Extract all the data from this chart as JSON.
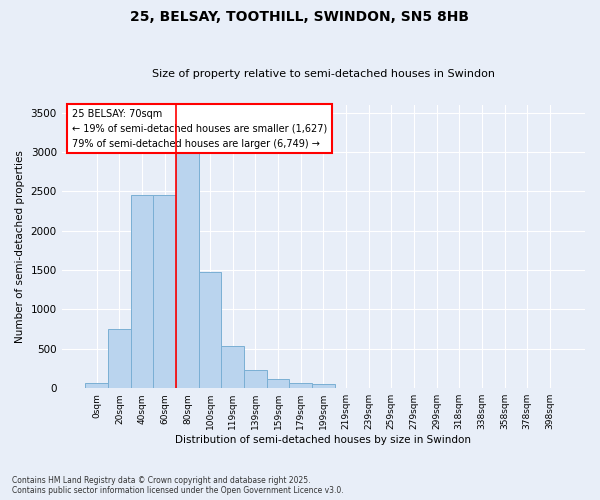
{
  "title": "25, BELSAY, TOOTHILL, SWINDON, SN5 8HB",
  "subtitle": "Size of property relative to semi-detached houses in Swindon",
  "xlabel": "Distribution of semi-detached houses by size in Swindon",
  "ylabel": "Number of semi-detached properties",
  "bar_color": "#bad4ee",
  "bar_edge_color": "#7aafd4",
  "background_color": "#e8eef8",
  "fig_color": "#e8eef8",
  "categories": [
    "0sqm",
    "20sqm",
    "40sqm",
    "60sqm",
    "80sqm",
    "100sqm",
    "119sqm",
    "139sqm",
    "159sqm",
    "179sqm",
    "199sqm",
    "219sqm",
    "239sqm",
    "259sqm",
    "279sqm",
    "299sqm",
    "318sqm",
    "338sqm",
    "358sqm",
    "378sqm",
    "398sqm"
  ],
  "values": [
    60,
    750,
    2450,
    2450,
    3000,
    1480,
    530,
    230,
    120,
    60,
    50,
    0,
    0,
    0,
    0,
    0,
    0,
    0,
    0,
    0,
    0
  ],
  "property_label": "25 BELSAY: 70sqm",
  "pct_smaller": 19,
  "pct_larger": 79,
  "count_smaller": "1,627",
  "count_larger": "6,749",
  "vline_x": 3.5,
  "ylim": [
    0,
    3600
  ],
  "yticks": [
    0,
    500,
    1000,
    1500,
    2000,
    2500,
    3000,
    3500
  ],
  "footer_line1": "Contains HM Land Registry data © Crown copyright and database right 2025.",
  "footer_line2": "Contains public sector information licensed under the Open Government Licence v3.0."
}
